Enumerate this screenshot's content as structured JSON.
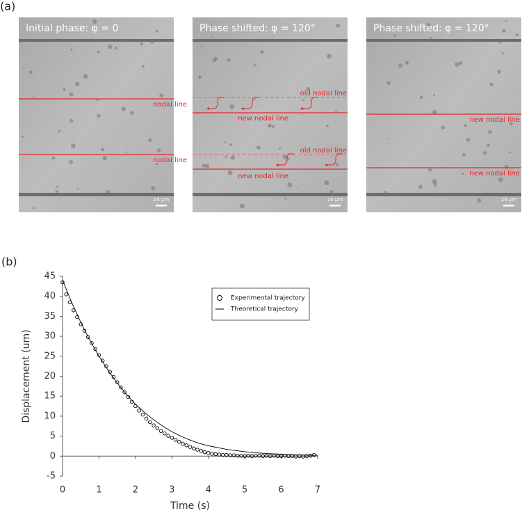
{
  "panel_a": {
    "label": "(a)",
    "images": [
      {
        "title": "Initial phase: φ = 0",
        "annotations": [
          "nodal line",
          "nodal line"
        ],
        "scale_bar": "25 µm"
      },
      {
        "title": "Phase shifted:  φ = 120°",
        "annotations": [
          "old nodal line",
          "new nodal line",
          "old nodal line",
          "new nodal line"
        ],
        "scale_bar": "25 µm"
      },
      {
        "title": "Phase shifted: φ = 120°",
        "annotations": [
          "new nodal line",
          "new nodal line"
        ],
        "scale_bar": "25 µm"
      }
    ]
  },
  "chart_data": {
    "type": "scatter",
    "panel_label": "(b)",
    "x_label": "Time (s)",
    "y_label": "Displacement (um)",
    "xlim": [
      0,
      7
    ],
    "xticks": [
      0,
      1,
      2,
      3,
      4,
      5,
      6,
      7
    ],
    "ylim": [
      -5,
      45
    ],
    "yticks": [
      -5,
      0,
      5,
      10,
      15,
      20,
      25,
      30,
      35,
      40,
      45
    ],
    "legend": "upper right",
    "series": [
      {
        "name": "Experimental trajectory",
        "mode": "markers",
        "color": "#000000",
        "x": [
          0,
          0.1,
          0.2,
          0.3,
          0.4,
          0.5,
          0.6,
          0.7,
          0.8,
          0.9,
          1.0,
          1.1,
          1.2,
          1.3,
          1.4,
          1.5,
          1.6,
          1.7,
          1.8,
          1.9,
          2.0,
          2.1,
          2.2,
          2.3,
          2.4,
          2.5,
          2.6,
          2.7,
          2.8,
          2.9,
          3.0,
          3.1,
          3.2,
          3.3,
          3.4,
          3.5,
          3.6,
          3.7,
          3.8,
          3.9,
          4.0,
          4.1,
          4.2,
          4.3,
          4.4,
          4.5,
          4.6,
          4.7,
          4.8,
          4.9,
          5.0,
          5.1,
          5.2,
          5.3,
          5.4,
          5.5,
          5.6,
          5.7,
          5.8,
          5.9,
          6.0,
          6.1,
          6.2,
          6.3,
          6.4,
          6.5,
          6.6,
          6.7,
          6.8,
          6.9
        ],
        "values": [
          43.5,
          40.5,
          38.5,
          36.5,
          34.8,
          33,
          31.4,
          29.8,
          28.3,
          26.8,
          25.3,
          23.9,
          22.5,
          21.1,
          19.8,
          18.5,
          17.2,
          16,
          14.8,
          13.6,
          12.5,
          11.4,
          10.4,
          9.4,
          8.5,
          7.7,
          7,
          6.3,
          5.7,
          5.1,
          4.6,
          4.1,
          3.6,
          3.1,
          2.7,
          2.3,
          1.9,
          1.6,
          1.3,
          1.0,
          0.8,
          0.6,
          0.5,
          0.4,
          0.3,
          0.3,
          0.2,
          0.2,
          0.1,
          0.1,
          0,
          0.1,
          0,
          0.1,
          0.1,
          0,
          0.1,
          0,
          0.1,
          0,
          0,
          0.1,
          0,
          0,
          -0.1,
          0,
          -0.1,
          0,
          0.1,
          0.3
        ]
      },
      {
        "name": "Theoretical trajectory",
        "mode": "line",
        "color": "#000000",
        "x": [
          0,
          0.25,
          0.5,
          0.75,
          1,
          1.25,
          1.5,
          1.75,
          2,
          2.25,
          2.5,
          2.75,
          3,
          3.25,
          3.5,
          3.75,
          4,
          4.5,
          5,
          5.5,
          6,
          6.5,
          7
        ],
        "values": [
          44,
          38.5,
          33.5,
          29,
          25,
          21.5,
          18.3,
          15.5,
          13,
          10.9,
          9.1,
          7.5,
          6.1,
          5,
          4,
          3.2,
          2.6,
          1.7,
          1.1,
          0.7,
          0.5,
          0.3,
          0.2
        ]
      }
    ]
  }
}
